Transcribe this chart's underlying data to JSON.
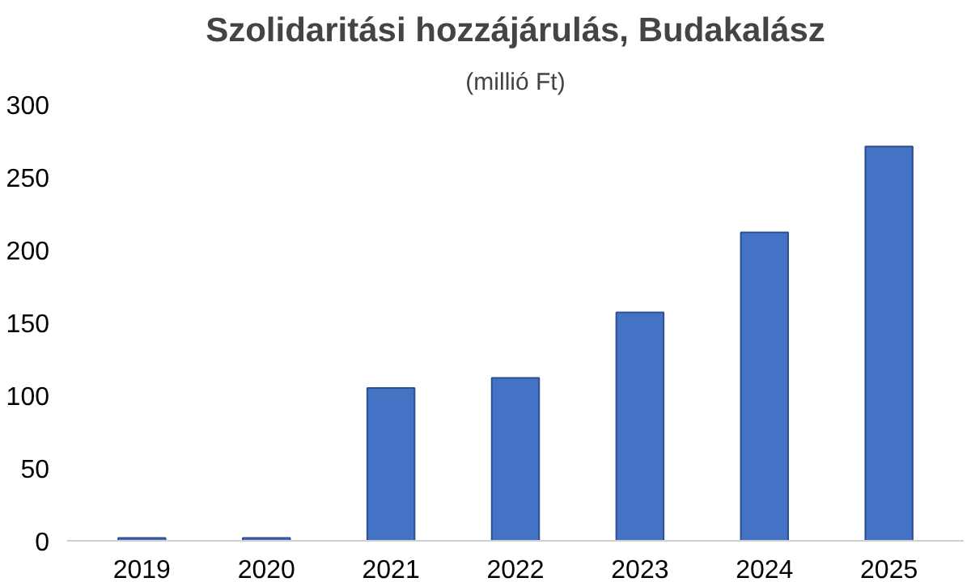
{
  "chart_data": {
    "type": "bar",
    "title": "Szolidaritási hozzájárulás, Budakalász",
    "subtitle": "(millió Ft)",
    "categories": [
      "2019",
      "2020",
      "2021",
      "2022",
      "2023",
      "2024",
      "2025"
    ],
    "values": [
      2,
      2,
      105,
      112,
      157,
      212,
      271
    ],
    "color": "#4472c4",
    "ylim": [
      0,
      300
    ],
    "yticks": [
      0,
      50,
      100,
      150,
      200,
      250,
      300
    ],
    "grid": false
  }
}
